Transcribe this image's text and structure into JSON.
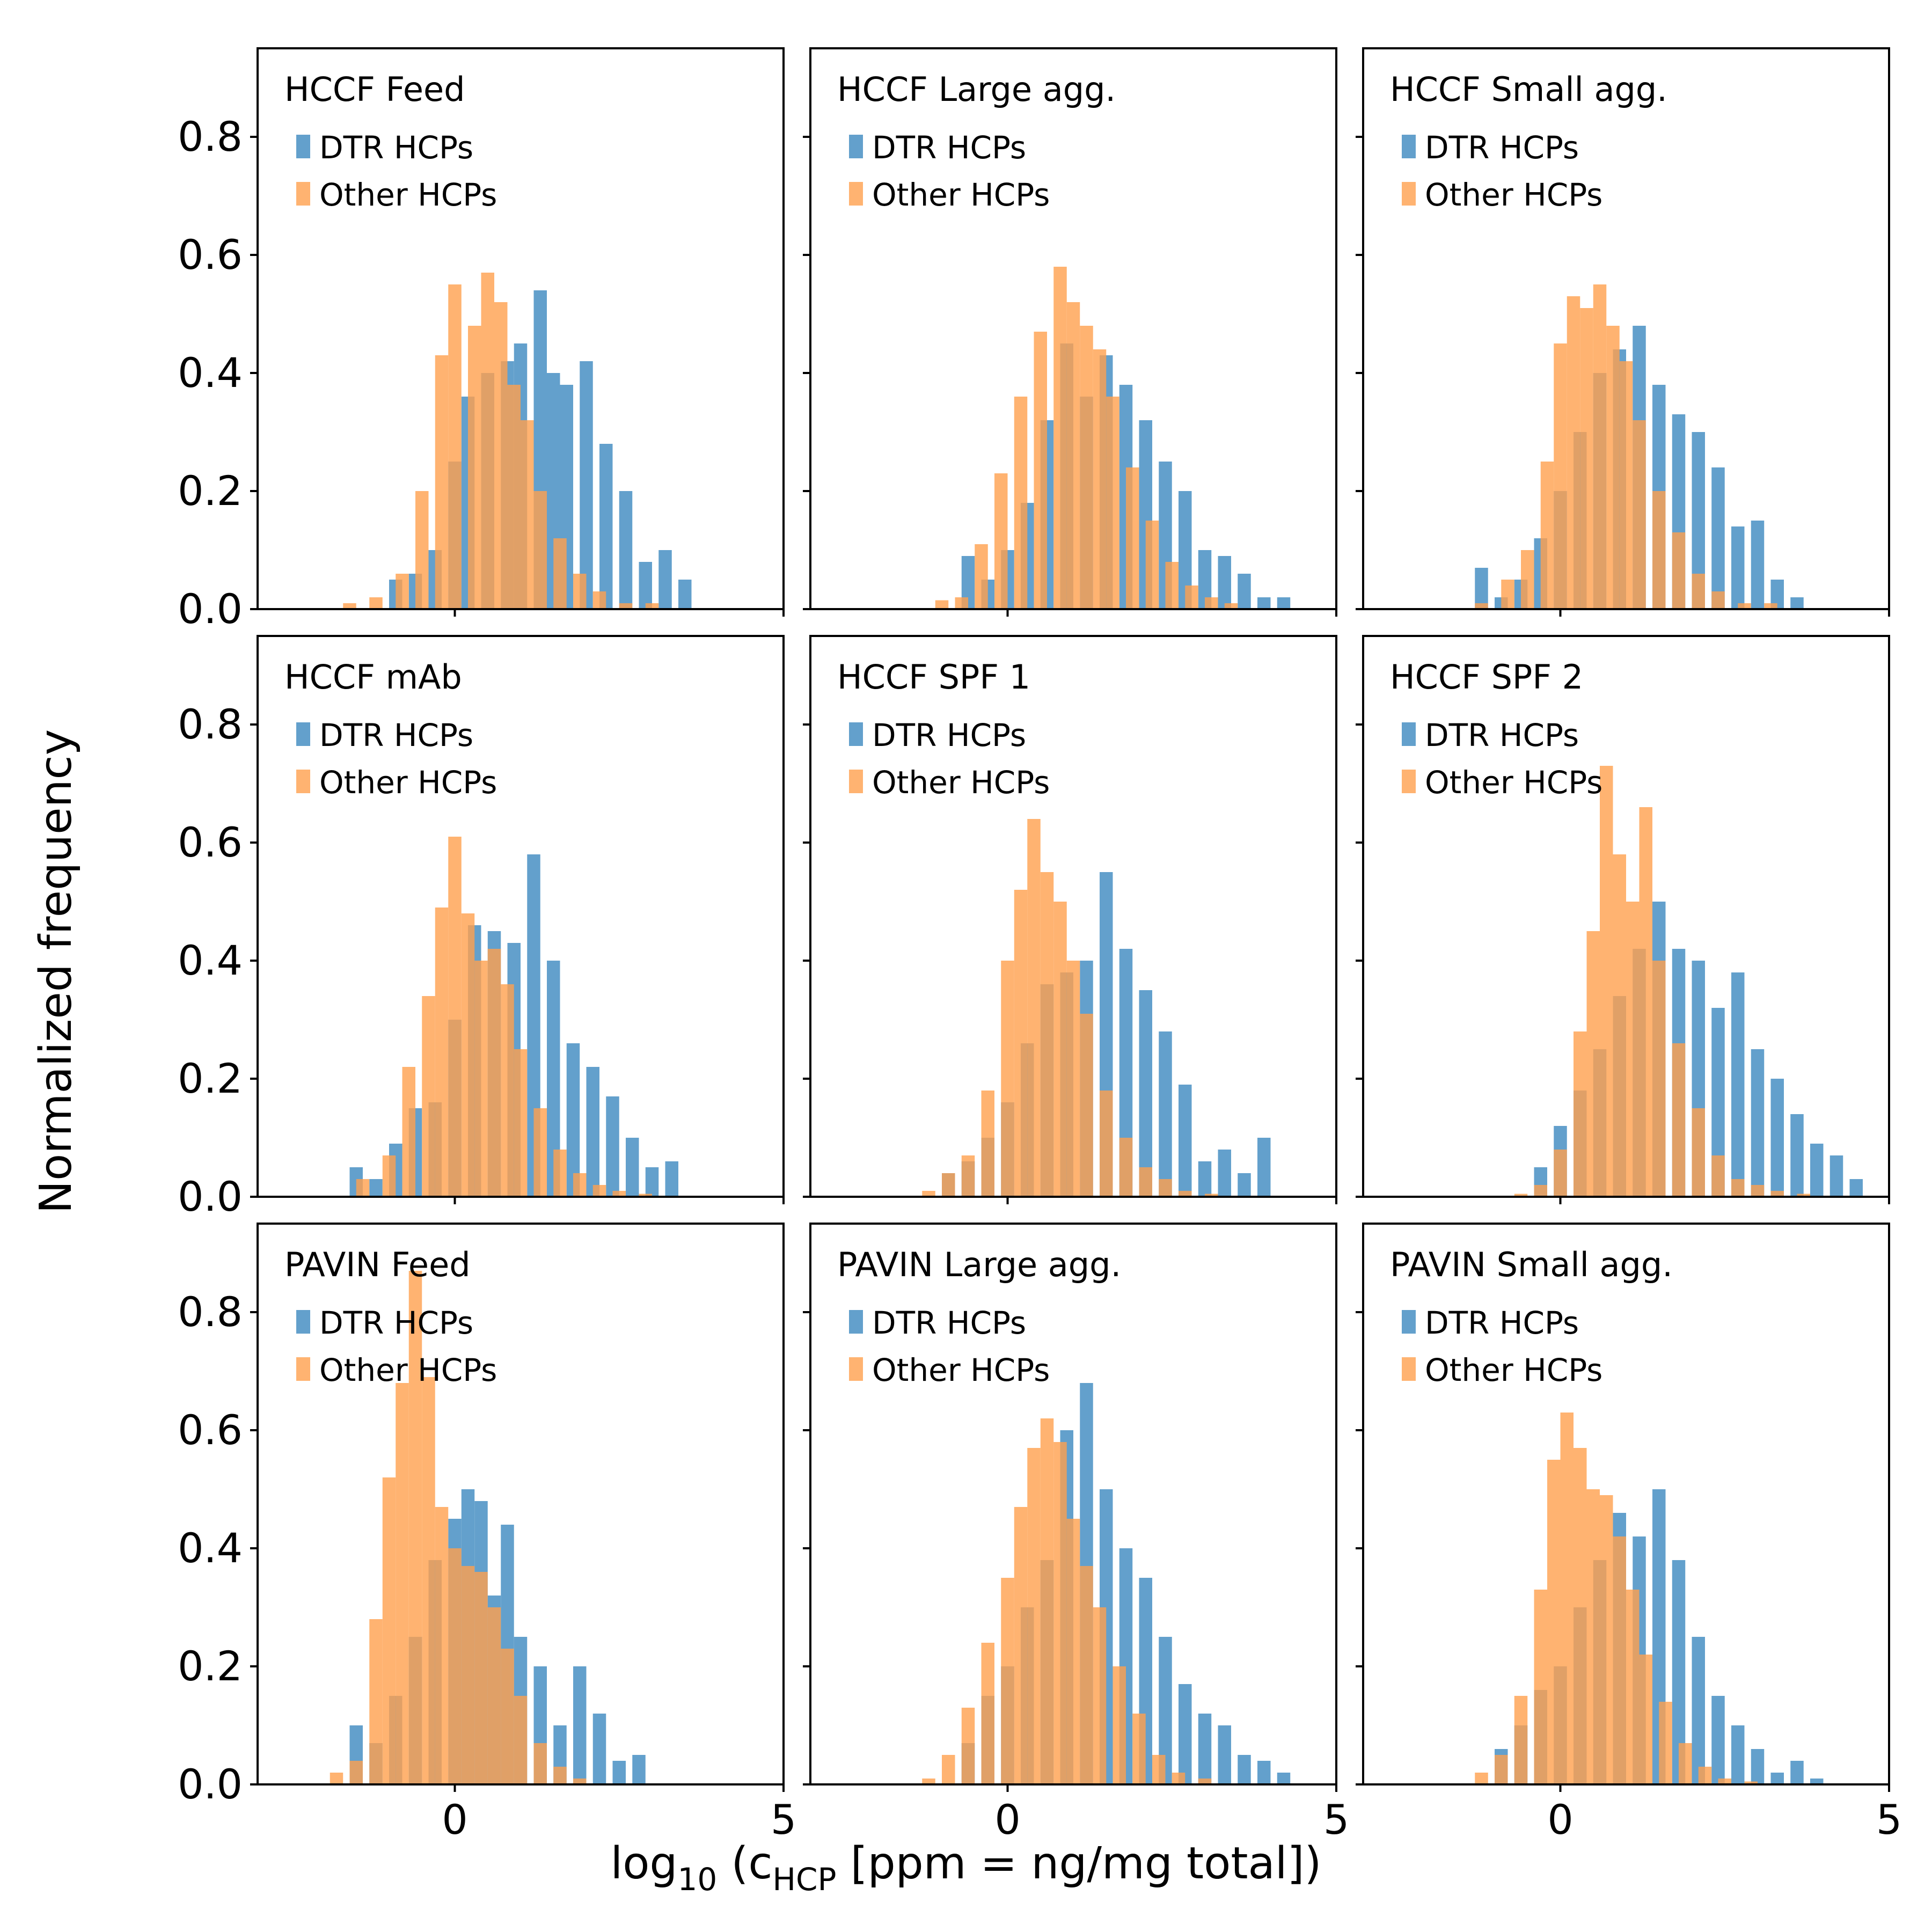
{
  "figure": {
    "xlabel": "log",
    "xlabel_sub": "10",
    "xlabel_mid": " (c",
    "xlabel_sub2": "HCP",
    "xlabel_tail": " [ppm  =  ng/mg total])",
    "ylabel": "Normalized frequency"
  },
  "colors": {
    "dtr": "#5b9bc9",
    "other": "#ffa04e",
    "overlap": "#cf8745",
    "axis": "#000000"
  },
  "chart_data": [
    {
      "type": "bar",
      "title": "HCCF Feed",
      "xlim": [
        -3,
        5
      ],
      "ylim": [
        0,
        0.95
      ],
      "xticks": [
        "0",
        "5"
      ],
      "yticks": [
        "0.0",
        "0.2",
        "0.4",
        "0.6",
        "0.8"
      ],
      "series": [
        {
          "name": "DTR HCPs",
          "x": [
            -0.9,
            -0.6,
            -0.3,
            0.0,
            0.2,
            0.5,
            0.8,
            1.0,
            1.3,
            1.5,
            1.7,
            2.0,
            2.3,
            2.6,
            2.9,
            3.2,
            3.5
          ],
          "values": [
            0.05,
            0.06,
            0.1,
            0.25,
            0.36,
            0.4,
            0.42,
            0.45,
            0.54,
            0.4,
            0.38,
            0.42,
            0.28,
            0.2,
            0.08,
            0.1,
            0.05
          ]
        },
        {
          "name": "Other HCPs",
          "x": [
            -1.6,
            -1.2,
            -0.8,
            -0.5,
            -0.2,
            0.0,
            0.3,
            0.5,
            0.7,
            0.9,
            1.1,
            1.3,
            1.6,
            1.9,
            2.2,
            2.6,
            3.0
          ],
          "values": [
            0.01,
            0.02,
            0.06,
            0.2,
            0.43,
            0.55,
            0.48,
            0.57,
            0.52,
            0.38,
            0.32,
            0.2,
            0.12,
            0.06,
            0.03,
            0.01,
            0.01
          ]
        }
      ]
    },
    {
      "type": "bar",
      "title": "HCCF Large agg.",
      "xlim": [
        -3,
        5
      ],
      "ylim": [
        0,
        0.95
      ],
      "xticks": [
        "0",
        "5"
      ],
      "yticks": [
        "0.0",
        "0.2",
        "0.4",
        "0.6",
        "0.8"
      ],
      "series": [
        {
          "name": "DTR HCPs",
          "x": [
            -0.6,
            -0.3,
            0.0,
            0.3,
            0.6,
            0.9,
            1.2,
            1.5,
            1.8,
            2.1,
            2.4,
            2.7,
            3.0,
            3.3,
            3.6,
            3.9,
            4.2
          ],
          "values": [
            0.09,
            0.05,
            0.1,
            0.18,
            0.32,
            0.45,
            0.36,
            0.43,
            0.38,
            0.32,
            0.25,
            0.2,
            0.1,
            0.09,
            0.06,
            0.02,
            0.02
          ]
        },
        {
          "name": "Other HCPs",
          "x": [
            -1.0,
            -0.7,
            -0.4,
            -0.1,
            0.2,
            0.5,
            0.8,
            1.0,
            1.2,
            1.4,
            1.6,
            1.9,
            2.2,
            2.5,
            2.8,
            3.1,
            3.4
          ],
          "values": [
            0.015,
            0.02,
            0.11,
            0.23,
            0.36,
            0.47,
            0.58,
            0.52,
            0.48,
            0.44,
            0.36,
            0.24,
            0.15,
            0.08,
            0.04,
            0.02,
            0.01
          ]
        }
      ]
    },
    {
      "type": "bar",
      "title": "HCCF Small agg.",
      "xlim": [
        -3,
        5
      ],
      "ylim": [
        0,
        0.95
      ],
      "xticks": [
        "0",
        "5"
      ],
      "yticks": [
        "0.0",
        "0.2",
        "0.4",
        "0.6",
        "0.8"
      ],
      "series": [
        {
          "name": "DTR HCPs",
          "x": [
            -1.2,
            -0.9,
            -0.6,
            -0.3,
            0.0,
            0.3,
            0.6,
            0.9,
            1.2,
            1.5,
            1.8,
            2.1,
            2.4,
            2.7,
            3.0,
            3.3,
            3.6
          ],
          "values": [
            0.07,
            0.02,
            0.05,
            0.12,
            0.2,
            0.3,
            0.4,
            0.44,
            0.48,
            0.38,
            0.33,
            0.3,
            0.24,
            0.14,
            0.15,
            0.05,
            0.02
          ]
        },
        {
          "name": "Other HCPs",
          "x": [
            -1.2,
            -0.8,
            -0.5,
            -0.2,
            0.0,
            0.2,
            0.4,
            0.6,
            0.8,
            1.0,
            1.2,
            1.5,
            1.8,
            2.1,
            2.4,
            2.8,
            3.2
          ],
          "values": [
            0.01,
            0.05,
            0.1,
            0.25,
            0.45,
            0.53,
            0.51,
            0.55,
            0.48,
            0.42,
            0.32,
            0.2,
            0.13,
            0.06,
            0.03,
            0.01,
            0.01
          ]
        }
      ]
    },
    {
      "type": "bar",
      "title": "HCCF mAb",
      "xlim": [
        -3,
        5
      ],
      "ylim": [
        0,
        0.95
      ],
      "xticks": [
        "0",
        "5"
      ],
      "yticks": [
        "0.0",
        "0.2",
        "0.4",
        "0.6",
        "0.8"
      ],
      "series": [
        {
          "name": "DTR HCPs",
          "x": [
            -1.5,
            -1.2,
            -0.9,
            -0.6,
            -0.3,
            0.0,
            0.3,
            0.6,
            0.9,
            1.2,
            1.5,
            1.8,
            2.1,
            2.4,
            2.7,
            3.0,
            3.3
          ],
          "values": [
            0.05,
            0.03,
            0.09,
            0.15,
            0.16,
            0.3,
            0.46,
            0.45,
            0.43,
            0.58,
            0.4,
            0.26,
            0.22,
            0.17,
            0.1,
            0.05,
            0.06
          ]
        },
        {
          "name": "Other HCPs",
          "x": [
            -1.4,
            -1.0,
            -0.7,
            -0.4,
            -0.2,
            0.0,
            0.2,
            0.4,
            0.6,
            0.8,
            1.0,
            1.3,
            1.6,
            1.9,
            2.2,
            2.5,
            2.9
          ],
          "values": [
            0.03,
            0.07,
            0.22,
            0.34,
            0.49,
            0.61,
            0.48,
            0.4,
            0.42,
            0.36,
            0.25,
            0.15,
            0.08,
            0.04,
            0.02,
            0.01,
            0.005
          ]
        }
      ]
    },
    {
      "type": "bar",
      "title": "HCCF SPF 1",
      "xlim": [
        -3,
        5
      ],
      "ylim": [
        0,
        0.95
      ],
      "xticks": [
        "0",
        "5"
      ],
      "yticks": [
        "0.0",
        "0.2",
        "0.4",
        "0.6",
        "0.8"
      ],
      "series": [
        {
          "name": "DTR HCPs",
          "x": [
            -0.9,
            -0.6,
            -0.3,
            0.0,
            0.3,
            0.6,
            0.9,
            1.2,
            1.5,
            1.8,
            2.1,
            2.4,
            2.7,
            3.0,
            3.3,
            3.6,
            3.9
          ],
          "values": [
            0.04,
            0.06,
            0.1,
            0.16,
            0.26,
            0.36,
            0.38,
            0.4,
            0.55,
            0.42,
            0.35,
            0.28,
            0.19,
            0.06,
            0.08,
            0.04,
            0.1
          ]
        },
        {
          "name": "Other HCPs",
          "x": [
            -1.2,
            -0.9,
            -0.6,
            -0.3,
            0.0,
            0.2,
            0.4,
            0.6,
            0.8,
            1.0,
            1.2,
            1.5,
            1.8,
            2.1,
            2.4,
            2.7,
            3.1
          ],
          "values": [
            0.01,
            0.04,
            0.07,
            0.18,
            0.4,
            0.52,
            0.64,
            0.55,
            0.5,
            0.4,
            0.31,
            0.18,
            0.1,
            0.05,
            0.03,
            0.01,
            0.005
          ]
        }
      ]
    },
    {
      "type": "bar",
      "title": "HCCF SPF 2",
      "xlim": [
        -3,
        5
      ],
      "ylim": [
        0,
        0.95
      ],
      "xticks": [
        "0",
        "5"
      ],
      "yticks": [
        "0.0",
        "0.2",
        "0.4",
        "0.6",
        "0.8"
      ],
      "series": [
        {
          "name": "DTR HCPs",
          "x": [
            -0.3,
            0.0,
            0.3,
            0.6,
            0.9,
            1.2,
            1.5,
            1.8,
            2.1,
            2.4,
            2.7,
            3.0,
            3.3,
            3.6,
            3.9,
            4.2,
            4.5
          ],
          "values": [
            0.05,
            0.12,
            0.18,
            0.25,
            0.34,
            0.42,
            0.5,
            0.42,
            0.4,
            0.32,
            0.38,
            0.25,
            0.2,
            0.14,
            0.09,
            0.07,
            0.03
          ]
        },
        {
          "name": "Other HCPs",
          "x": [
            -0.6,
            -0.3,
            0.0,
            0.3,
            0.5,
            0.7,
            0.9,
            1.1,
            1.3,
            1.5,
            1.8,
            2.1,
            2.4,
            2.7,
            3.0,
            3.3,
            3.7
          ],
          "values": [
            0.005,
            0.02,
            0.08,
            0.28,
            0.45,
            0.73,
            0.58,
            0.5,
            0.66,
            0.4,
            0.26,
            0.15,
            0.07,
            0.03,
            0.02,
            0.01,
            0.005
          ]
        }
      ]
    },
    {
      "type": "bar",
      "title": "PAVIN Feed",
      "xlim": [
        -3,
        5
      ],
      "ylim": [
        0,
        0.95
      ],
      "xticks": [
        "0",
        "5"
      ],
      "yticks": [
        "0.0",
        "0.2",
        "0.4",
        "0.6",
        "0.8"
      ],
      "series": [
        {
          "name": "DTR HCPs",
          "x": [
            -1.5,
            -1.2,
            -0.9,
            -0.6,
            -0.3,
            0.0,
            0.2,
            0.4,
            0.6,
            0.8,
            1.0,
            1.3,
            1.6,
            1.9,
            2.2,
            2.5,
            2.8
          ],
          "values": [
            0.1,
            0.07,
            0.15,
            0.25,
            0.38,
            0.45,
            0.5,
            0.48,
            0.32,
            0.44,
            0.25,
            0.2,
            0.1,
            0.2,
            0.12,
            0.04,
            0.05
          ]
        },
        {
          "name": "Other HCPs",
          "x": [
            -1.8,
            -1.5,
            -1.2,
            -1.0,
            -0.8,
            -0.6,
            -0.4,
            -0.2,
            0.0,
            0.2,
            0.4,
            0.6,
            0.8,
            1.0,
            1.3,
            1.6,
            1.9
          ],
          "values": [
            0.02,
            0.04,
            0.28,
            0.52,
            0.68,
            0.87,
            0.69,
            0.47,
            0.4,
            0.37,
            0.36,
            0.3,
            0.23,
            0.15,
            0.07,
            0.03,
            0.01
          ]
        }
      ]
    },
    {
      "type": "bar",
      "title": "PAVIN Large agg.",
      "xlim": [
        -3,
        5
      ],
      "ylim": [
        0,
        0.95
      ],
      "xticks": [
        "0",
        "5"
      ],
      "yticks": [
        "0.0",
        "0.2",
        "0.4",
        "0.6",
        "0.8"
      ],
      "series": [
        {
          "name": "DTR HCPs",
          "x": [
            -0.6,
            -0.3,
            0.0,
            0.3,
            0.6,
            0.9,
            1.2,
            1.5,
            1.8,
            2.1,
            2.4,
            2.7,
            3.0,
            3.3,
            3.6,
            3.9,
            4.2
          ],
          "values": [
            0.07,
            0.15,
            0.2,
            0.3,
            0.38,
            0.6,
            0.68,
            0.5,
            0.4,
            0.35,
            0.25,
            0.17,
            0.12,
            0.1,
            0.05,
            0.04,
            0.02
          ]
        },
        {
          "name": "Other HCPs",
          "x": [
            -1.2,
            -0.9,
            -0.6,
            -0.3,
            0.0,
            0.2,
            0.4,
            0.6,
            0.8,
            1.0,
            1.2,
            1.4,
            1.7,
            2.0,
            2.3,
            2.6,
            3.0
          ],
          "values": [
            0.01,
            0.05,
            0.13,
            0.24,
            0.35,
            0.47,
            0.57,
            0.62,
            0.58,
            0.45,
            0.37,
            0.3,
            0.2,
            0.12,
            0.05,
            0.02,
            0.01
          ]
        }
      ]
    },
    {
      "type": "bar",
      "title": "PAVIN Small agg.",
      "xlim": [
        -3,
        5
      ],
      "ylim": [
        0,
        0.95
      ],
      "xticks": [
        "0",
        "5"
      ],
      "yticks": [
        "0.0",
        "0.2",
        "0.4",
        "0.6",
        "0.8"
      ],
      "series": [
        {
          "name": "DTR HCPs",
          "x": [
            -0.9,
            -0.6,
            -0.3,
            0.0,
            0.3,
            0.6,
            0.9,
            1.2,
            1.5,
            1.8,
            2.1,
            2.4,
            2.7,
            3.0,
            3.3,
            3.6,
            3.9
          ],
          "values": [
            0.06,
            0.1,
            0.16,
            0.2,
            0.3,
            0.38,
            0.46,
            0.42,
            0.5,
            0.38,
            0.25,
            0.15,
            0.1,
            0.06,
            0.02,
            0.04,
            0.01
          ]
        },
        {
          "name": "Other HCPs",
          "x": [
            -1.2,
            -0.9,
            -0.6,
            -0.3,
            -0.1,
            0.1,
            0.3,
            0.5,
            0.7,
            0.9,
            1.1,
            1.3,
            1.6,
            1.9,
            2.2,
            2.5,
            2.9
          ],
          "values": [
            0.02,
            0.05,
            0.15,
            0.33,
            0.55,
            0.63,
            0.57,
            0.5,
            0.49,
            0.42,
            0.33,
            0.22,
            0.14,
            0.07,
            0.03,
            0.01,
            0.005
          ]
        }
      ]
    }
  ]
}
